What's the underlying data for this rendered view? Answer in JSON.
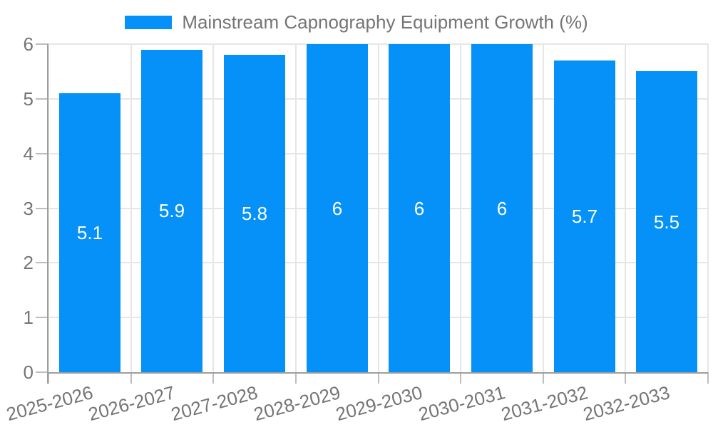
{
  "chart_data": {
    "type": "bar",
    "title": "Mainstream Capnography Equipment Growth (%)",
    "categories": [
      "2025-2026",
      "2026-2027",
      "2027-2028",
      "2028-2029",
      "2029-2030",
      "2030-2031",
      "2031-2032",
      "2032-2033"
    ],
    "values": [
      5.1,
      5.9,
      5.8,
      6,
      6,
      6,
      5.7,
      5.5
    ],
    "value_labels": [
      "5.1",
      "5.9",
      "5.8",
      "6",
      "6",
      "6",
      "5.7",
      "5.5"
    ],
    "xlabel": "",
    "ylabel": "",
    "ylim": [
      0,
      6
    ],
    "yticks": [
      0,
      1,
      2,
      3,
      4,
      5,
      6
    ],
    "grid": "both",
    "legend_position": "top-center",
    "colors": {
      "bar": "#0591f8",
      "bar_value_text": "#ffffff",
      "gridline": "#e6e6e6",
      "axis_line": "#9e9e9e",
      "tick": "#bdbdbd",
      "label_text": "#757575",
      "background": "#ffffff"
    }
  }
}
